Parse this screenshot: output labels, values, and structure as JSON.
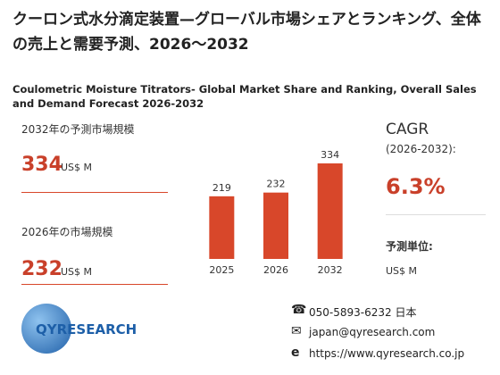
{
  "header": {
    "title": "クーロン式水分滴定装置—グローバル市場シェアとランキング、全体の売上と需要予測、2026～2032",
    "subtitle": "Coulometric Moisture Titrators- Global Market Share and Ranking, Overall Sales and Demand Forecast 2026-2032"
  },
  "left": {
    "forecast": {
      "label": "2032年の予測市場規模",
      "value": "334",
      "unit": "US$ M"
    },
    "current": {
      "label": "2026年の市場規模",
      "value": "232",
      "unit": "US$ M"
    }
  },
  "chart_data": {
    "type": "bar",
    "categories": [
      "2025",
      "2026",
      "2032"
    ],
    "values": [
      219,
      232,
      334
    ],
    "color": "#d8472a"
  },
  "cagr": {
    "label": "CAGR",
    "period": "(2026-2032):",
    "value": "6.3%",
    "unit_label": "予測単位:",
    "unit": "US$ M"
  },
  "logo": {
    "text": "QYRESEARCH"
  },
  "contact": {
    "phone": "050-5893-6232 日本",
    "email": "japan@qyresearch.com",
    "web": "https://www.qyresearch.co.jp"
  }
}
